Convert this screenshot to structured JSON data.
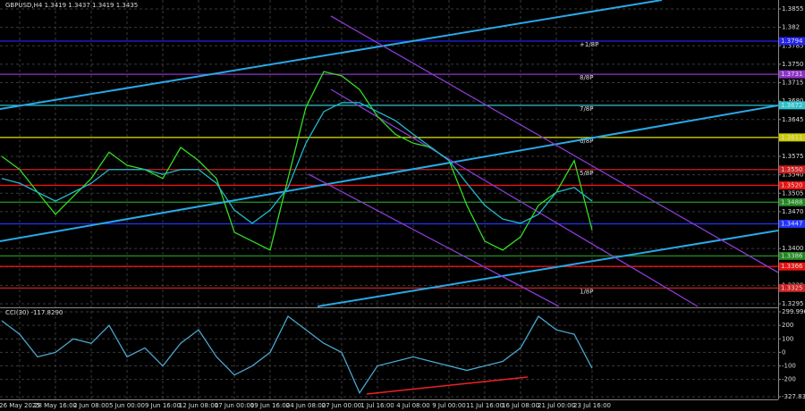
{
  "chart_data": [
    {
      "type": "line",
      "title": "GBPUSD,H4 1.3419 1.3437 1.3419 1.3435",
      "categories": [
        null,
        "26 May 2025",
        null,
        "28 May 16:00",
        null,
        "2 Jun 08:00",
        null,
        "5 Jun 00:00",
        null,
        "9 Jun 16:00",
        null,
        "12 Jun 08:00",
        null,
        "17 Jun 00:00",
        null,
        "19 Jun 16:00",
        null,
        "24 Jun 08:00",
        null,
        "27 Jun 00:00",
        null,
        "1 Jul 16:00",
        null,
        "4 Jul 08:00",
        null,
        "9 Jul 00:00",
        null,
        "11 Jul 16:00",
        null,
        "16 Jul 08:00",
        null,
        "21 Jul 00:00",
        null,
        "23 Jul 16:00"
      ],
      "series": [
        {
          "name": "GBPUSD",
          "color": "#33dd22",
          "values": [
            1.3575,
            1.355,
            1.3507,
            1.3465,
            1.3499,
            1.3533,
            1.3583,
            1.3558,
            1.355,
            1.3533,
            1.3592,
            1.3567,
            1.3533,
            1.3431,
            1.3414,
            1.3397,
            1.3533,
            1.3668,
            1.3736,
            1.3728,
            1.3702,
            1.3651,
            1.3617,
            1.36,
            1.3592,
            1.3567,
            1.3482,
            1.3414,
            1.3397,
            1.3422,
            1.3482,
            1.3507,
            1.3567,
            1.3435
          ]
        },
        {
          "name": "MA",
          "color": "#22b8cc",
          "values": [
            1.3533,
            1.3524,
            1.3507,
            1.349,
            1.3507,
            1.3524,
            1.355,
            1.355,
            1.355,
            1.3541,
            1.355,
            1.355,
            1.3524,
            1.3473,
            1.3448,
            1.3473,
            1.3516,
            1.36,
            1.366,
            1.3677,
            1.3677,
            1.366,
            1.3643,
            1.3617,
            1.3592,
            1.3567,
            1.3524,
            1.3482,
            1.3456,
            1.3448,
            1.3465,
            1.3507,
            1.3516,
            1.349
          ]
        }
      ],
      "ylim": [
        1.329,
        1.3872
      ],
      "yticks": [
        1.3855,
        1.382,
        1.3785,
        {
          "value": 1.375,
          "label": "1.3750"
        },
        1.3715,
        {
          "value": 1.368,
          "label": "1.3680"
        },
        1.3645,
        1.3575,
        {
          "value": 1.354,
          "label": "1.3540"
        },
        1.3505,
        {
          "value": 1.347,
          "label": "1.3470"
        },
        {
          "value": 1.34,
          "label": "1.3400"
        },
        1.3365,
        {
          "value": 1.333,
          "label": "1.3330"
        },
        1.3295
      ],
      "levels": [
        {
          "value": 1.3794,
          "label": "1.3794",
          "color": "#2222ee",
          "name": "+1/8P"
        },
        {
          "value": 1.3731,
          "label": "1.3731",
          "color": "#8e33c8",
          "name": "8/8P"
        },
        {
          "value": 1.3672,
          "label": "1.3672",
          "color": "#2cc4cc",
          "name": "7/8P"
        },
        {
          "value": 1.3611,
          "label": "1.3611",
          "color": "#cccc00",
          "name": "6/8P"
        },
        {
          "value": 1.355,
          "label": "1.3550",
          "color": "#cc2020",
          "name": "5/8P"
        },
        {
          "value": 1.352,
          "label": "1.3520",
          "color": "#ee1111"
        },
        {
          "value": 1.3488,
          "label": "1.3488",
          "color": "#228822"
        },
        {
          "value": 1.3447,
          "label": "1.3447",
          "color": "#2233ff"
        },
        {
          "value": 1.3386,
          "label": "1.3386",
          "color": "#228822"
        },
        {
          "value": 1.3366,
          "label": "1.3366",
          "color": "#ee1111"
        },
        {
          "value": 1.3325,
          "label": "1.3325",
          "color": "#cc2020",
          "name": "1/8P"
        }
      ],
      "grid": true
    },
    {
      "type": "line",
      "title": "CCI(30) -117.8290",
      "series": [
        {
          "name": "CCI(30)",
          "color": "#4aa6cc",
          "values": [
            234,
            134,
            -33,
            0,
            100,
            67,
            200,
            -33,
            33,
            -100,
            67,
            167,
            -33,
            -167,
            -100,
            0,
            267,
            167,
            67,
            0,
            -300,
            -100,
            -67,
            -33,
            -67,
            -100,
            -133,
            -100,
            -67,
            33,
            267,
            167,
            134,
            -117.829
          ]
        }
      ],
      "ylim": [
        -327.8322,
        299.9969
      ],
      "yticks": [
        299.9969,
        200,
        100,
        0,
        -100,
        -200,
        -327.8322
      ],
      "grid": true
    }
  ]
}
